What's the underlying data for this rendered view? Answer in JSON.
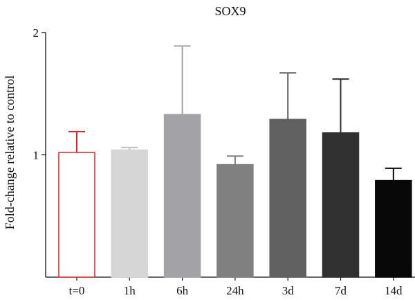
{
  "chart_data": {
    "type": "bar",
    "title": "SOX9",
    "xlabel": "",
    "ylabel": "Fold-change relative to control",
    "ylim": [
      0,
      2
    ],
    "yticks": [
      1,
      2
    ],
    "grid": false,
    "categories": [
      "t=0",
      "1h",
      "6h",
      "24h",
      "3d",
      "7d",
      "14d"
    ],
    "values": [
      1.02,
      1.04,
      1.33,
      0.92,
      1.29,
      1.18,
      0.79
    ],
    "error_upper": [
      1.19,
      1.06,
      1.89,
      0.99,
      1.67,
      1.62,
      0.89
    ],
    "colors": {
      "fills": [
        "#ffffff",
        "#d6d6d6",
        "#a3a3a6",
        "#7f807f",
        "#606060",
        "#303030",
        "#080808"
      ],
      "strokes": [
        "#d7262b",
        "#d6d6d6",
        "#a3a3a6",
        "#7f807f",
        "#606060",
        "#303030",
        "#080808"
      ],
      "error_bars": [
        "#d7262b",
        "#c0c0c0",
        "#a3a3a6",
        "#7f807f",
        "#606060",
        "#303030",
        "#080808"
      ],
      "axis": "#111111"
    }
  }
}
